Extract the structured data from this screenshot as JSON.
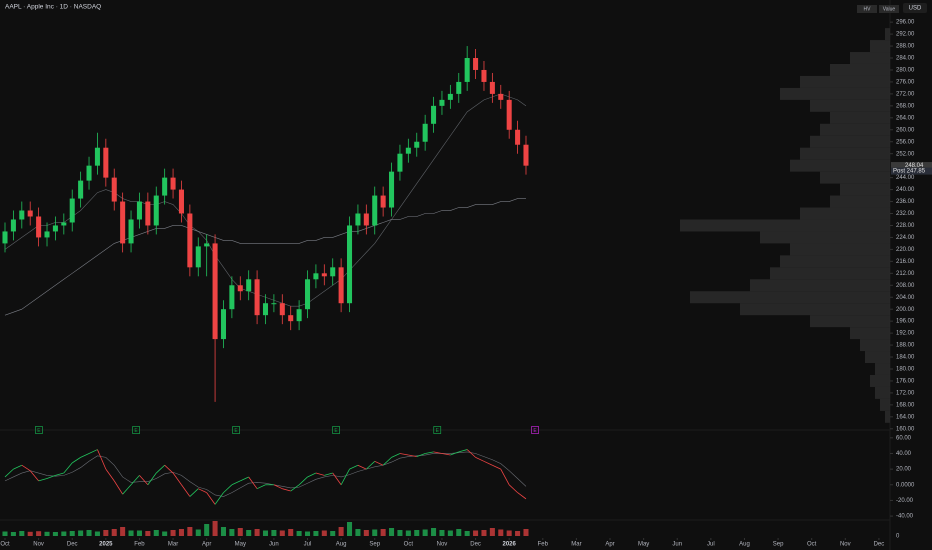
{
  "header": {
    "title": "AAPL · Apple Inc · 1D · NASDAQ",
    "currency": "USD",
    "legend_headers": [
      "HV",
      "Value"
    ]
  },
  "chart_data": {
    "type": "candlestick",
    "x": [
      0,
      0.25,
      0.5,
      0.75,
      1,
      1.25,
      1.5,
      1.75,
      2,
      2.25,
      2.5,
      2.75,
      3,
      3.25,
      3.5,
      3.75,
      4,
      4.25,
      4.5,
      4.75,
      5,
      5.25,
      5.5,
      5.75,
      6,
      6.25,
      6.5,
      6.75,
      7,
      7.25,
      7.5,
      7.75,
      8,
      8.25,
      8.5,
      8.75,
      9,
      9.25,
      9.5,
      9.75,
      10,
      10.25,
      10.5,
      10.75,
      11,
      11.25,
      11.5,
      11.75,
      12,
      12.25,
      12.5,
      12.75,
      13,
      13.25,
      13.5,
      13.75,
      14,
      14.25,
      14.5,
      14.75,
      15,
      15.25,
      15.5
    ],
    "open": [
      222,
      226,
      230,
      233,
      231,
      224,
      226,
      228,
      229,
      237,
      243,
      248,
      254,
      244,
      236,
      222,
      230,
      236,
      228,
      238,
      244,
      240,
      232,
      214,
      221,
      222,
      190,
      200,
      208,
      206,
      210,
      198,
      202,
      202,
      198,
      196,
      200,
      210,
      212,
      211,
      214,
      202,
      228,
      232,
      228,
      238,
      234,
      246,
      252,
      254,
      256,
      262,
      268,
      270,
      272,
      276,
      284,
      280,
      276,
      272,
      270,
      260,
      255
    ],
    "high": [
      229,
      233,
      236,
      236,
      234,
      229,
      231,
      232,
      240,
      246,
      251,
      259,
      257,
      247,
      239,
      233,
      239,
      239,
      241,
      247,
      247,
      243,
      235,
      224,
      225,
      225,
      203,
      211,
      211,
      213,
      213,
      205,
      205,
      205,
      201,
      203,
      213,
      215,
      215,
      217,
      217,
      231,
      235,
      235,
      241,
      241,
      249,
      255,
      257,
      259,
      265,
      271,
      273,
      275,
      279,
      288,
      287,
      283,
      279,
      275,
      273,
      263,
      258
    ],
    "low": [
      219,
      223,
      227,
      228,
      221,
      221,
      223,
      225,
      226,
      234,
      240,
      245,
      241,
      233,
      219,
      219,
      227,
      225,
      225,
      235,
      237,
      229,
      211,
      211,
      211,
      169,
      187,
      197,
      203,
      203,
      195,
      195,
      199,
      195,
      193,
      193,
      197,
      207,
      208,
      208,
      199,
      199,
      225,
      225,
      225,
      231,
      231,
      243,
      249,
      251,
      253,
      259,
      265,
      267,
      269,
      273,
      277,
      273,
      269,
      267,
      257,
      252,
      245
    ],
    "close": [
      226,
      230,
      233,
      231,
      224,
      226,
      228,
      229,
      237,
      243,
      248,
      254,
      244,
      236,
      222,
      230,
      236,
      228,
      238,
      244,
      240,
      232,
      214,
      221,
      222,
      190,
      200,
      208,
      206,
      210,
      198,
      202,
      202,
      198,
      196,
      200,
      210,
      212,
      211,
      214,
      202,
      228,
      232,
      228,
      238,
      234,
      246,
      252,
      254,
      256,
      262,
      268,
      270,
      272,
      276,
      284,
      280,
      276,
      272,
      270,
      260,
      255,
      248
    ],
    "up_color": "#22c55e",
    "down_color": "#ef4444",
    "moving_averages": [
      {
        "color": "#5f6368",
        "values": [
          220,
          222,
          224,
          226,
          228,
          228,
          229,
          229,
          231,
          233,
          236,
          239,
          240,
          239,
          237,
          236,
          236,
          235,
          235,
          236,
          235,
          232,
          228,
          226,
          223,
          218,
          214,
          210,
          207,
          206,
          205,
          204,
          203,
          202,
          201,
          201,
          202,
          204,
          206,
          208,
          210,
          213,
          216,
          219,
          222,
          226,
          230,
          234,
          238,
          242,
          246,
          250,
          254,
          258,
          262,
          266,
          268,
          270,
          271,
          272,
          271,
          270,
          268
        ]
      },
      {
        "color": "#7a7d85",
        "values": [
          198,
          199,
          200,
          202,
          204,
          206,
          208,
          210,
          212,
          214,
          216,
          218,
          220,
          222,
          223,
          224,
          225,
          226,
          227,
          227,
          228,
          228,
          227,
          226,
          225,
          224,
          223,
          223,
          222,
          222,
          222,
          222,
          222,
          222,
          222,
          222,
          223,
          223,
          224,
          224,
          225,
          226,
          226,
          227,
          228,
          229,
          230,
          230,
          231,
          231,
          232,
          232,
          233,
          233,
          234,
          234,
          235,
          235,
          235,
          236,
          236,
          237,
          237
        ]
      }
    ],
    "xlim": [
      0,
      26.3
    ],
    "xticks": [
      {
        "value": 0,
        "label": "Oct"
      },
      {
        "value": 1,
        "label": "Nov"
      },
      {
        "value": 2,
        "label": "Dec"
      },
      {
        "value": 3,
        "label": "2025"
      },
      {
        "value": 4,
        "label": "Feb"
      },
      {
        "value": 5,
        "label": "Mar"
      },
      {
        "value": 6,
        "label": "Apr"
      },
      {
        "value": 7,
        "label": "May"
      },
      {
        "value": 8,
        "label": "Jun"
      },
      {
        "value": 9,
        "label": "Jul"
      },
      {
        "value": 10,
        "label": "Aug"
      },
      {
        "value": 11,
        "label": "Sep"
      },
      {
        "value": 12,
        "label": "Oct"
      },
      {
        "value": 13,
        "label": "Nov"
      },
      {
        "value": 14,
        "label": "Dec"
      },
      {
        "value": 15,
        "label": "2026"
      },
      {
        "value": 16,
        "label": "Feb"
      },
      {
        "value": 17,
        "label": "Mar"
      },
      {
        "value": 18,
        "label": "Apr"
      },
      {
        "value": 19,
        "label": "May"
      },
      {
        "value": 20,
        "label": "Jun"
      },
      {
        "value": 21,
        "label": "Jul"
      },
      {
        "value": 22,
        "label": "Aug"
      },
      {
        "value": 23,
        "label": "Sep"
      },
      {
        "value": 24,
        "label": "Oct"
      },
      {
        "value": 25,
        "label": "Nov"
      },
      {
        "value": 26,
        "label": "Dec"
      }
    ],
    "ylim": [
      159.6,
      303.4
    ],
    "yticks": [
      {
        "value": 296,
        "label": "296.00"
      },
      {
        "value": 292,
        "label": "292.00"
      },
      {
        "value": 288,
        "label": "288.00"
      },
      {
        "value": 284,
        "label": "284.00"
      },
      {
        "value": 280,
        "label": "280.00"
      },
      {
        "value": 276,
        "label": "276.00"
      },
      {
        "value": 272,
        "label": "272.00"
      },
      {
        "value": 268,
        "label": "268.00"
      },
      {
        "value": 264,
        "label": "264.00"
      },
      {
        "value": 260,
        "label": "260.00"
      },
      {
        "value": 256,
        "label": "256.00"
      },
      {
        "value": 252,
        "label": "252.00"
      },
      {
        "value": 244,
        "label": "244.00"
      },
      {
        "value": 240,
        "label": "240.00"
      },
      {
        "value": 236,
        "label": "236.00"
      },
      {
        "value": 232,
        "label": "232.00"
      },
      {
        "value": 228,
        "label": "228.00"
      },
      {
        "value": 224,
        "label": "224.00"
      },
      {
        "value": 220,
        "label": "220.00"
      },
      {
        "value": 216,
        "label": "216.00"
      },
      {
        "value": 212,
        "label": "212.00"
      },
      {
        "value": 208,
        "label": "208.00"
      },
      {
        "value": 204,
        "label": "204.00"
      },
      {
        "value": 200,
        "label": "200.00"
      },
      {
        "value": 196,
        "label": "196.00"
      },
      {
        "value": 192,
        "label": "192.00"
      },
      {
        "value": 188,
        "label": "188.00"
      },
      {
        "value": 184,
        "label": "184.00"
      },
      {
        "value": 180,
        "label": "180.00"
      },
      {
        "value": 176,
        "label": "176.00"
      },
      {
        "value": 172,
        "label": "172.00"
      },
      {
        "value": 168,
        "label": "168.00"
      },
      {
        "value": 164,
        "label": "164.00"
      },
      {
        "value": 160,
        "label": "160.00"
      }
    ],
    "price_labels": [
      {
        "value": 248.04,
        "label": "248.04"
      },
      {
        "value": 247.85,
        "label": "Post  247.85"
      }
    ],
    "earnings": {
      "label": "E",
      "x": [
        1.01,
        3.9,
        6.875,
        9.85,
        12.86,
        15.77
      ]
    },
    "volume_profile": {
      "color": "#2a2a2a",
      "levels": [
        164,
        168,
        172,
        176,
        180,
        184,
        188,
        192,
        196,
        200,
        204,
        208,
        212,
        216,
        220,
        224,
        228,
        232,
        236,
        240,
        244,
        248,
        252,
        256,
        260,
        264,
        268,
        272,
        276,
        280,
        284,
        288,
        292
      ],
      "values": [
        5,
        10,
        15,
        20,
        15,
        25,
        30,
        40,
        80,
        150,
        200,
        140,
        120,
        110,
        100,
        130,
        210,
        90,
        60,
        50,
        70,
        100,
        90,
        80,
        70,
        60,
        80,
        110,
        90,
        60,
        40,
        20,
        5
      ],
      "xlim": [
        0,
        210
      ]
    },
    "oscillator": {
      "color_up": "#22c55e",
      "color_down": "#ef4444",
      "signal_color": "#6b6e75",
      "values": [
        10,
        20,
        25,
        18,
        5,
        8,
        12,
        15,
        28,
        35,
        40,
        45,
        20,
        5,
        -12,
        0,
        12,
        0,
        15,
        25,
        15,
        0,
        -15,
        -5,
        -10,
        -25,
        -10,
        0,
        5,
        10,
        -5,
        0,
        0,
        -5,
        -8,
        0,
        10,
        15,
        12,
        15,
        0,
        20,
        25,
        20,
        30,
        25,
        35,
        40,
        38,
        36,
        40,
        42,
        40,
        38,
        42,
        45,
        35,
        30,
        25,
        20,
        0,
        -10,
        -18
      ],
      "signal": [
        5,
        10,
        15,
        18,
        15,
        12,
        11,
        12,
        16,
        22,
        30,
        37,
        35,
        25,
        10,
        3,
        4,
        4,
        8,
        14,
        16,
        12,
        4,
        -3,
        -6,
        -13,
        -15,
        -10,
        -4,
        2,
        3,
        2,
        0,
        -2,
        -4,
        -3,
        2,
        7,
        10,
        12,
        10,
        13,
        17,
        20,
        23,
        25,
        29,
        34,
        36,
        37,
        38,
        40,
        40,
        40,
        41,
        42,
        40,
        36,
        32,
        27,
        18,
        8,
        -2
      ],
      "ylim": [
        -45,
        70
      ],
      "yticks": [
        {
          "value": 60,
          "label": "60.00"
        },
        {
          "value": 40,
          "label": "40.00"
        },
        {
          "value": 20,
          "label": "20.00"
        },
        {
          "value": 0,
          "label": "0.0000"
        },
        {
          "value": -20,
          "label": "-20.00"
        },
        {
          "value": -40,
          "label": "-40.00"
        }
      ]
    },
    "volume": {
      "values": [
        45,
        40,
        50,
        42,
        48,
        42,
        40,
        45,
        50,
        55,
        60,
        45,
        60,
        70,
        90,
        55,
        55,
        50,
        60,
        45,
        60,
        70,
        90,
        65,
        120,
        150,
        90,
        70,
        80,
        60,
        70,
        55,
        60,
        55,
        70,
        50,
        45,
        50,
        55,
        50,
        90,
        140,
        70,
        60,
        65,
        70,
        80,
        60,
        55,
        60,
        65,
        80,
        60,
        55,
        70,
        50,
        55,
        60,
        80,
        65,
        55,
        50,
        70
      ],
      "ylim": [
        0,
        160
      ],
      "yticks": [
        0
      ]
    }
  }
}
